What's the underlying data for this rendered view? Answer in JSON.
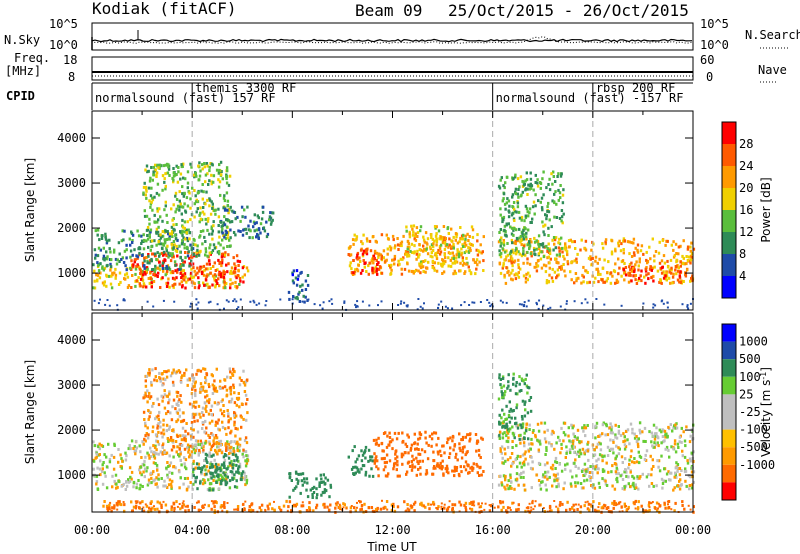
{
  "header": {
    "title": "Kodiak (fitACF)",
    "beam": "Beam 09",
    "date_range": "25/Oct/2015 - 26/Oct/2015"
  },
  "noise_panel": {
    "left_label": "N.Sky",
    "right_label": "N.Search",
    "left_ticks": [
      "10^5",
      "10^0"
    ],
    "right_ticks": [
      "10^5",
      "10^0"
    ]
  },
  "freq_panel": {
    "left_label_line1": "Freq.",
    "left_label_line2": "[MHz]",
    "right_label": "Nave",
    "left_ticks": [
      "18",
      "8"
    ],
    "right_ticks": [
      "60",
      "0"
    ],
    "freq_mhz": 10.5,
    "nave": 24
  },
  "cpid": {
    "label": "CPID",
    "segments": [
      {
        "label": "normalsound (fast) 157 RF",
        "start_h": 0,
        "end_h": 4,
        "level": "low"
      },
      {
        "label": "themis 3300 RF",
        "start_h": 4,
        "end_h": 16,
        "level": "high"
      },
      {
        "label": "normalsound (fast) -157 RF",
        "start_h": 16,
        "end_h": 20,
        "level": "low"
      },
      {
        "label": "rbsp 200 RF",
        "start_h": 20,
        "end_h": 24,
        "level": "high"
      }
    ]
  },
  "colors": {
    "power": [
      "#0000ff",
      "#1e4ba8",
      "#2e8b57",
      "#5abe3c",
      "#f0d000",
      "#ff9a00",
      "#ff5a00",
      "#ff0000"
    ],
    "velocity": [
      "#ff0000",
      "#ff6a00",
      "#ff9a00",
      "#ffc000",
      "#bfbfbf",
      "#bfbfbf",
      "#66cc33",
      "#2e8b57",
      "#1e4ba8",
      "#0000ff"
    ]
  },
  "chart_data": [
    {
      "type": "heatmap",
      "ylabel": "Slant Range [km]",
      "xlabel": "Time UT",
      "xlim": [
        0,
        24
      ],
      "ylim": [
        180,
        4600
      ],
      "yticks": [
        "1000",
        "2000",
        "3000",
        "4000"
      ],
      "xticks": [
        "00:00",
        "04:00",
        "08:00",
        "12:00",
        "16:00",
        "20:00",
        "00:00"
      ],
      "colorbar_label": "Power [dB]",
      "colorbar_ticks": [
        "4",
        "8",
        "12",
        "16",
        "20",
        "24",
        "28"
      ],
      "colorbar_range": [
        0,
        30
      ],
      "blobs": [
        {
          "t0": 0.0,
          "t1": 6.2,
          "r0": 700,
          "r1": 1200,
          "value": 18
        },
        {
          "t0": 1.5,
          "t1": 6.0,
          "r0": 700,
          "r1": 1500,
          "value": 26
        },
        {
          "t0": 0.0,
          "t1": 4.0,
          "r0": 1100,
          "r1": 2000,
          "value": 10
        },
        {
          "t0": 2.0,
          "t1": 5.5,
          "r0": 1400,
          "r1": 3500,
          "value": 13
        },
        {
          "t0": 5.0,
          "t1": 7.2,
          "r0": 1800,
          "r1": 2500,
          "value": 8
        },
        {
          "t0": 7.8,
          "t1": 8.6,
          "r0": 380,
          "r1": 1100,
          "value": 6
        },
        {
          "t0": 10.2,
          "t1": 15.6,
          "r0": 1000,
          "r1": 1900,
          "value": 20
        },
        {
          "t0": 10.3,
          "t1": 11.4,
          "r0": 1000,
          "r1": 1600,
          "value": 26
        },
        {
          "t0": 12.5,
          "t1": 15.2,
          "r0": 1200,
          "r1": 2100,
          "value": 17
        },
        {
          "t0": 16.2,
          "t1": 24.0,
          "r0": 800,
          "r1": 1800,
          "value": 20
        },
        {
          "t0": 16.2,
          "t1": 18.8,
          "r0": 1400,
          "r1": 3300,
          "value": 12
        },
        {
          "t0": 21.0,
          "t1": 24.0,
          "r0": 800,
          "r1": 1200,
          "value": 25
        }
      ]
    },
    {
      "type": "heatmap",
      "ylabel": "Slant Range [km]",
      "xlabel": "Time UT",
      "xlim": [
        0,
        24
      ],
      "ylim": [
        180,
        4600
      ],
      "yticks": [
        "1000",
        "2000",
        "3000",
        "4000"
      ],
      "xticks": [
        "00:00",
        "04:00",
        "08:00",
        "12:00",
        "16:00",
        "20:00",
        "00:00"
      ],
      "colorbar_label": "Velocity [m s^-1]",
      "colorbar_label_main": "Velocity [m s",
      "colorbar_label_sup": "-1",
      "colorbar_label_end": "]",
      "colorbar_ticks": [
        "1000",
        "500",
        "100",
        "25",
        "-25",
        "-100",
        "-500",
        "-1000"
      ],
      "blobs": [
        {
          "t0": 0.0,
          "t1": 6.2,
          "r0": 700,
          "r1": 1800,
          "value": 0
        },
        {
          "t0": 2.0,
          "t1": 6.2,
          "r0": 1500,
          "r1": 3400,
          "value": -60
        },
        {
          "t0": 4.0,
          "t1": 6.0,
          "r0": 700,
          "r1": 1300,
          "value": 150
        },
        {
          "t0": 4.5,
          "t1": 5.8,
          "r0": 900,
          "r1": 1500,
          "value": 400
        },
        {
          "t0": 7.8,
          "t1": 9.5,
          "r0": 500,
          "r1": 1100,
          "value": 300
        },
        {
          "t0": 10.2,
          "t1": 11.2,
          "r0": 1000,
          "r1": 1700,
          "value": 400
        },
        {
          "t0": 11.2,
          "t1": 15.6,
          "r0": 1000,
          "r1": 2000,
          "value": -300
        },
        {
          "t0": 16.2,
          "t1": 24.0,
          "r0": 700,
          "r1": 2200,
          "value": 0
        },
        {
          "t0": 16.2,
          "t1": 17.5,
          "r0": 1800,
          "r1": 3300,
          "value": 120
        },
        {
          "t0": 0.0,
          "t1": 24.0,
          "r0": 200,
          "r1": 450,
          "value": -110
        }
      ]
    }
  ]
}
